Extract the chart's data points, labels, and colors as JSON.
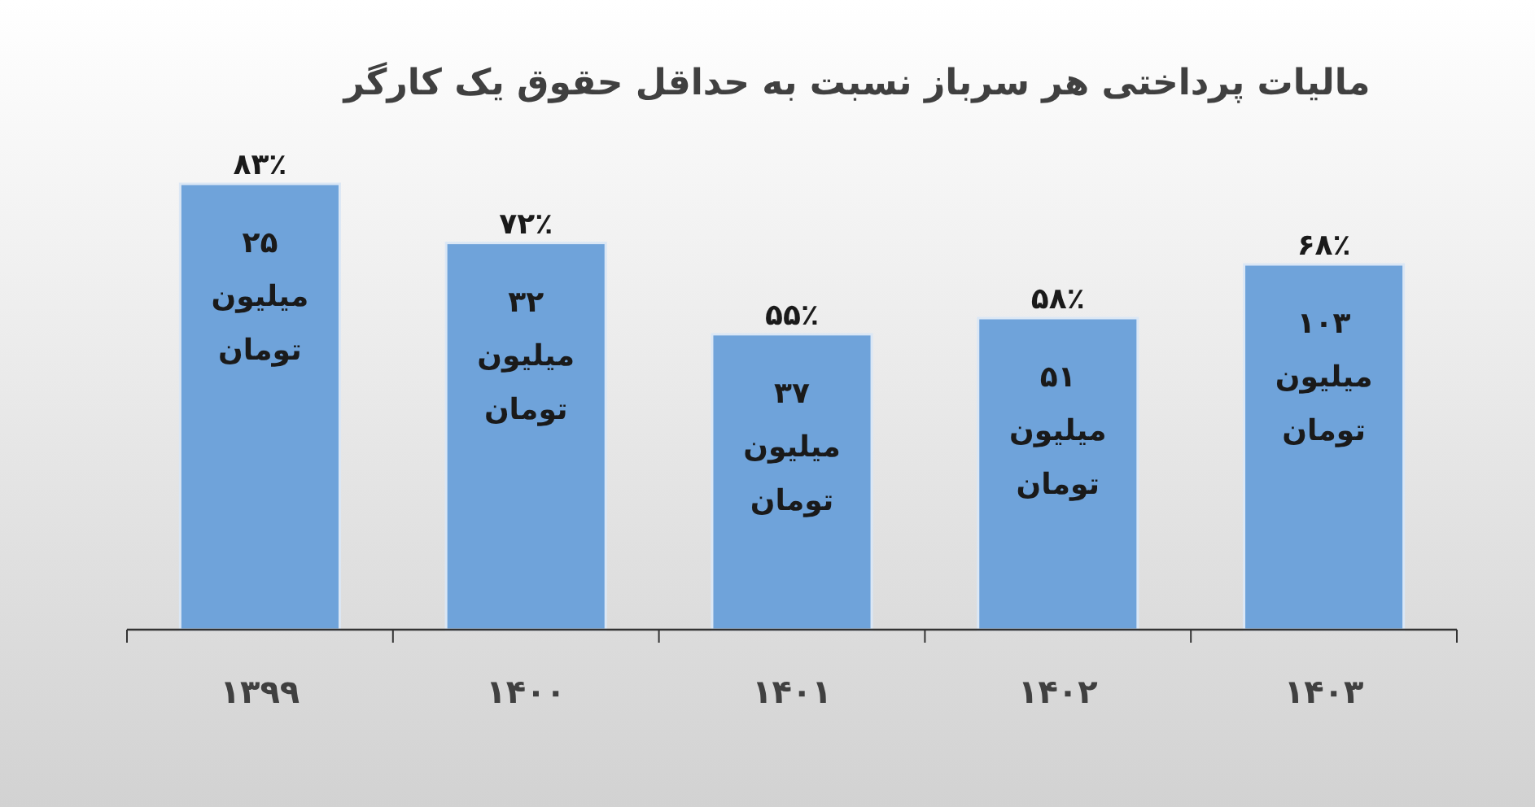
{
  "chart_data": {
    "type": "bar",
    "title": "مالیات پرداختی هر سرباز نسبت به حداقل حقوق یک کارگر",
    "categories": [
      "۱۳۹۹",
      "۱۴۰۰",
      "۱۴۰۱",
      "۱۴۰۲",
      "۱۴۰۳"
    ],
    "values": [
      83,
      72,
      55,
      58,
      68
    ],
    "value_labels": [
      "۸۳٪",
      "۷۲٪",
      "۵۵٪",
      "۵۸٪",
      "۶۸٪"
    ],
    "color": "#6fa3da",
    "annotations": [
      "۲۵\nمیلیون\nتومان",
      "۳۲\nمیلیون\nتومان",
      "۳۷\nمیلیون\nتومان",
      "۵۱\nمیلیون\nتومان",
      "۱۰۳\nمیلیون\nتومان"
    ]
  }
}
